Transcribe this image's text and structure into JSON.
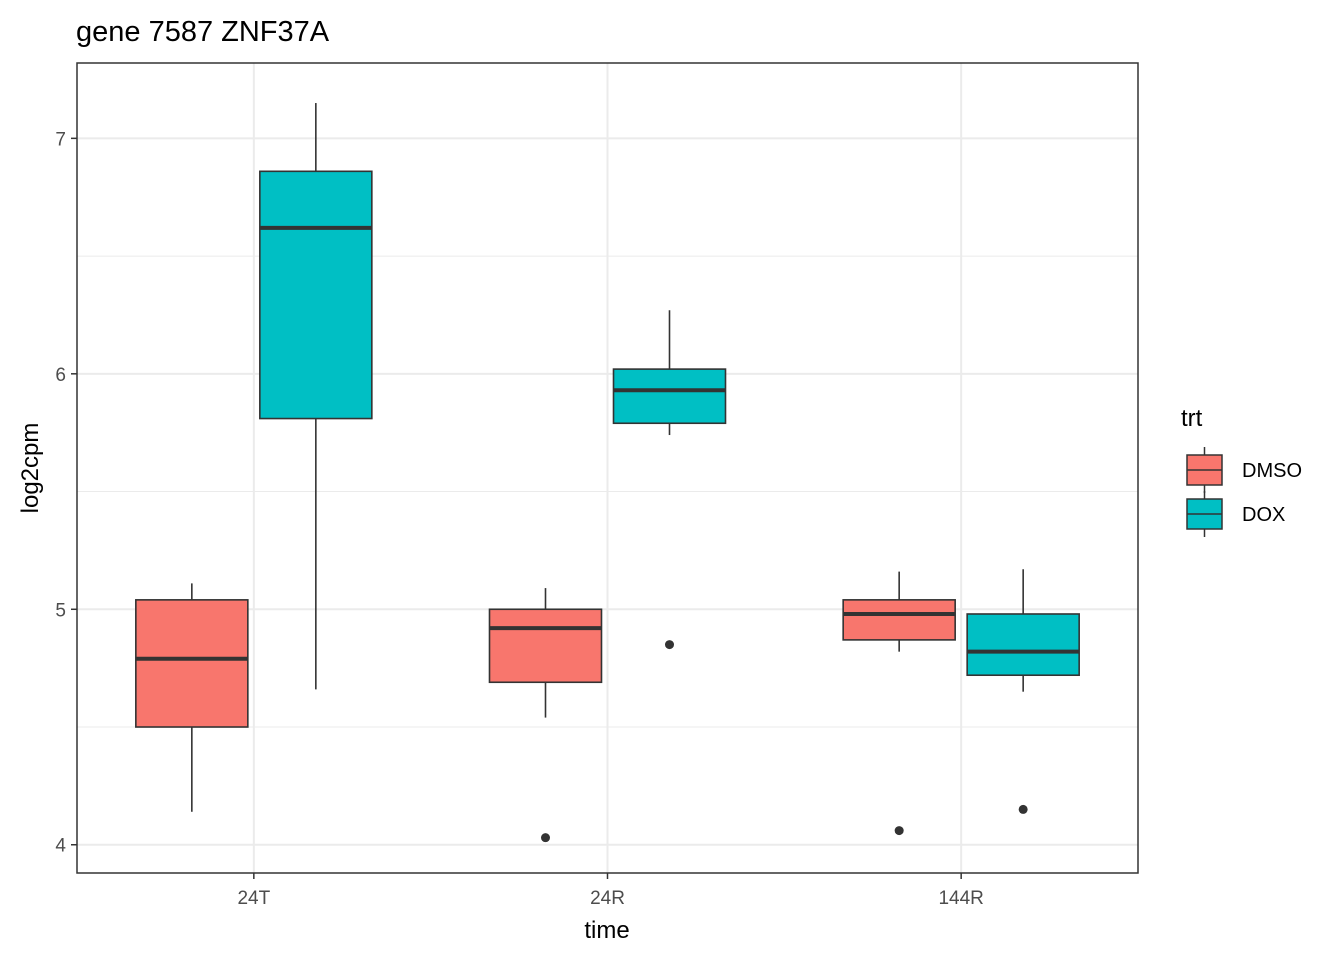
{
  "chart_data": {
    "type": "boxplot",
    "title": "gene 7587 ZNF37A",
    "xlabel": "time",
    "ylabel": "log2cpm",
    "categories": [
      "24T",
      "24R",
      "144R"
    ],
    "ylim": [
      3.88,
      7.32
    ],
    "yticks": [
      4,
      5,
      6,
      7
    ],
    "ytick_labels": [
      "4",
      "5",
      "6",
      "7"
    ],
    "grid": true,
    "legend": {
      "title": "trt",
      "position": "right"
    },
    "series": [
      {
        "name": "DMSO",
        "color": "#F8766D",
        "boxes": [
          {
            "category": "24T",
            "min": 4.14,
            "q1": 4.5,
            "median": 4.79,
            "q3": 5.04,
            "max": 5.11,
            "outliers": []
          },
          {
            "category": "24R",
            "min": 4.54,
            "q1": 4.69,
            "median": 4.92,
            "q3": 5.0,
            "max": 5.09,
            "outliers": [
              4.03
            ]
          },
          {
            "category": "144R",
            "min": 4.82,
            "q1": 4.87,
            "median": 4.98,
            "q3": 5.04,
            "max": 5.16,
            "outliers": [
              4.06
            ]
          }
        ]
      },
      {
        "name": "DOX",
        "color": "#00BFC4",
        "boxes": [
          {
            "category": "24T",
            "min": 4.66,
            "q1": 5.81,
            "median": 6.62,
            "q3": 6.86,
            "max": 7.15,
            "outliers": []
          },
          {
            "category": "24R",
            "min": 5.74,
            "q1": 5.79,
            "median": 5.93,
            "q3": 6.02,
            "max": 6.27,
            "outliers": [
              4.85
            ]
          },
          {
            "category": "144R",
            "min": 4.65,
            "q1": 4.72,
            "median": 4.82,
            "q3": 4.98,
            "max": 5.17,
            "outliers": [
              4.15
            ]
          }
        ]
      }
    ]
  }
}
